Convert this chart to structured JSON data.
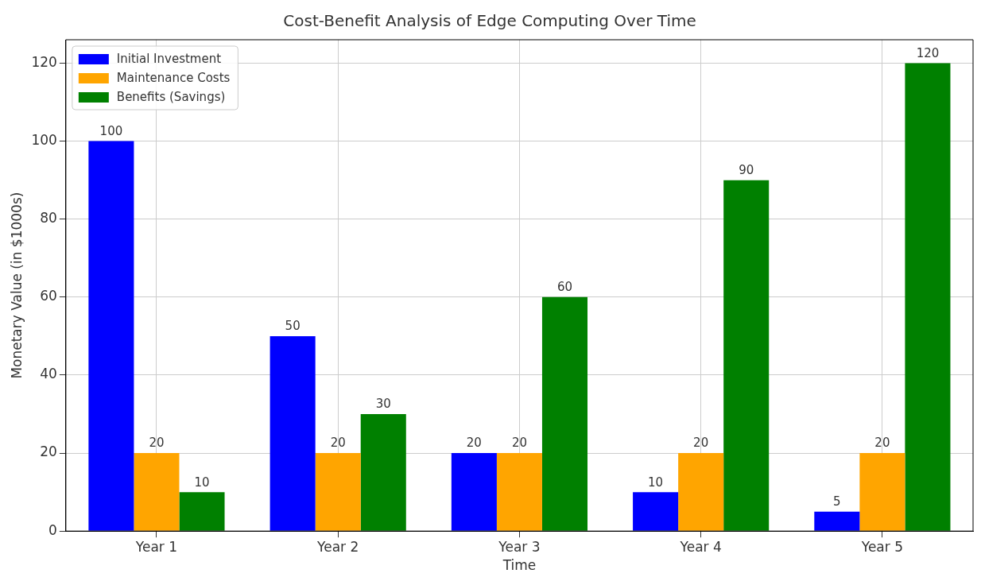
{
  "chart_data": {
    "type": "bar",
    "title": "Cost-Benefit Analysis of Edge Computing Over Time",
    "xlabel": "Time",
    "ylabel": "Monetary Value (in $1000s)",
    "categories": [
      "Year 1",
      "Year 2",
      "Year 3",
      "Year 4",
      "Year 5"
    ],
    "series": [
      {
        "name": "Initial Investment",
        "color": "#0000ff",
        "values": [
          100,
          50,
          20,
          10,
          5
        ]
      },
      {
        "name": "Maintenance Costs",
        "color": "#ffa500",
        "values": [
          20,
          20,
          20,
          20,
          20
        ]
      },
      {
        "name": "Benefits (Savings)",
        "color": "#008000",
        "values": [
          10,
          30,
          60,
          90,
          120
        ]
      }
    ],
    "ylim": [
      0,
      126
    ],
    "yticks": [
      0,
      20,
      40,
      60,
      80,
      100,
      120
    ],
    "grid": true,
    "legend": "top left",
    "data_labels": true
  }
}
